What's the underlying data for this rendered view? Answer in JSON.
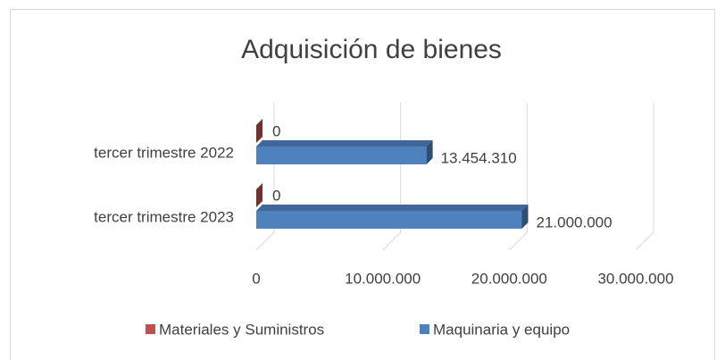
{
  "chart_data": {
    "type": "bar",
    "orientation": "horizontal",
    "title": "Adquisición de bienes",
    "categories": [
      "tercer trimestre 2022",
      "tercer trimestre 2023"
    ],
    "series": [
      {
        "name": "Materiales y Suministros",
        "color": "#c0504d",
        "values": [
          0,
          0
        ],
        "value_labels": [
          "0",
          "0"
        ]
      },
      {
        "name": "Maquinaria y equipo",
        "color": "#4f81bd",
        "values": [
          13454310,
          21000000
        ],
        "value_labels": [
          "13.454.310",
          "21.000.000"
        ]
      }
    ],
    "xlim": [
      0,
      30000000
    ],
    "xticks": [
      0,
      {
        "value": 10000000,
        "label": "10.000.000"
      },
      {
        "value": 20000000,
        "label": "20.000.000"
      },
      {
        "value": 30000000,
        "label": "30.000.000"
      }
    ],
    "grid": true,
    "legend": "bottom"
  }
}
